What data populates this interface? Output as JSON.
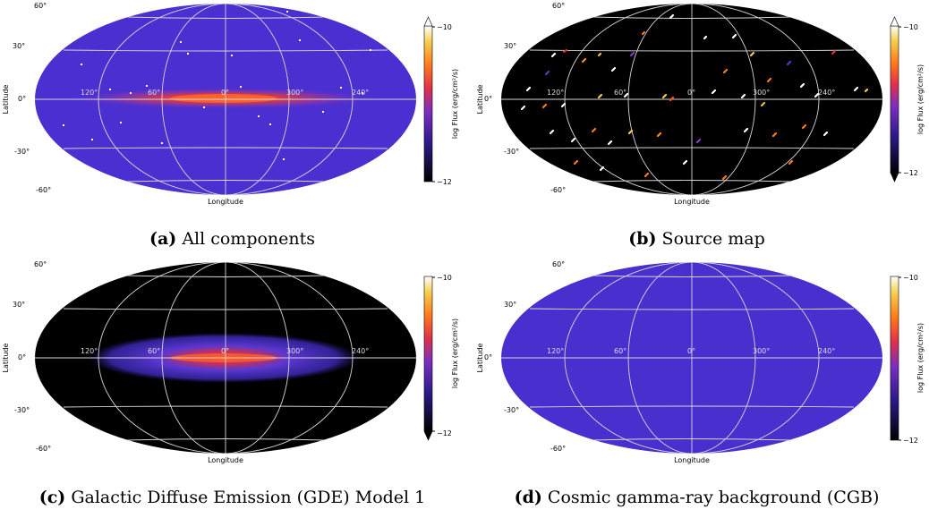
{
  "colorbar": {
    "top_tick": "−10",
    "bottom_tick": "−12",
    "label": "log Flux (erg/cm²/s)"
  },
  "axes": {
    "xlabel": "Longitude",
    "ylabel": "Latitude",
    "lat_ticks": [
      "60°",
      "30°",
      "0°",
      "-30°",
      "-60°"
    ],
    "lon_ticks": [
      "120°",
      "60°",
      "0°",
      "300°",
      "240°"
    ]
  },
  "panels": [
    {
      "id": "a",
      "letter": "(a)",
      "caption": "All components",
      "background": "#4b2fd0",
      "colorbar_extend": "max"
    },
    {
      "id": "b",
      "letter": "(b)",
      "caption": "Source map",
      "background": "#000000",
      "colorbar_extend": "both"
    },
    {
      "id": "c",
      "letter": "(c)",
      "caption": "Galactic Diffuse Emission (GDE) Model 1",
      "background": "#000000",
      "colorbar_extend": "min"
    },
    {
      "id": "d",
      "letter": "(d)",
      "caption": "Cosmic gamma-ray background (CGB)",
      "background": "#4a2fcf",
      "colorbar_extend": "none"
    }
  ],
  "colors": {
    "grid": "#d6d6d6",
    "plane": "#e03020"
  }
}
